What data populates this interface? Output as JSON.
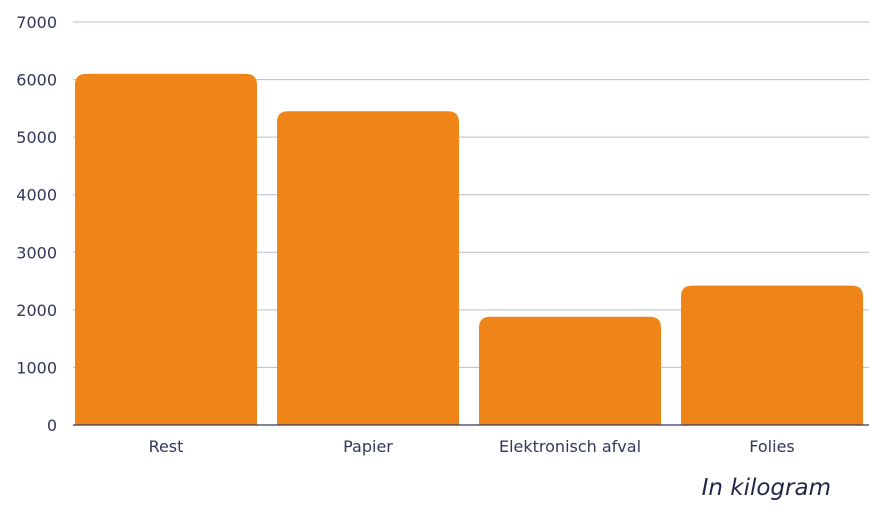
{
  "chart_data": {
    "type": "bar",
    "categories": [
      "Rest",
      "Papier",
      "Elektronisch afval",
      "Folies"
    ],
    "values": [
      6100,
      5450,
      1880,
      2420
    ],
    "ylim": [
      0,
      7000
    ],
    "yticks": [
      0,
      1000,
      2000,
      3000,
      4000,
      5000,
      6000,
      7000
    ],
    "grid": true,
    "note": "In kilogram"
  },
  "colors": {
    "bar": "#ef8518",
    "grid": "#b9bccf",
    "axis": "#33375a",
    "text": "#33375a"
  }
}
